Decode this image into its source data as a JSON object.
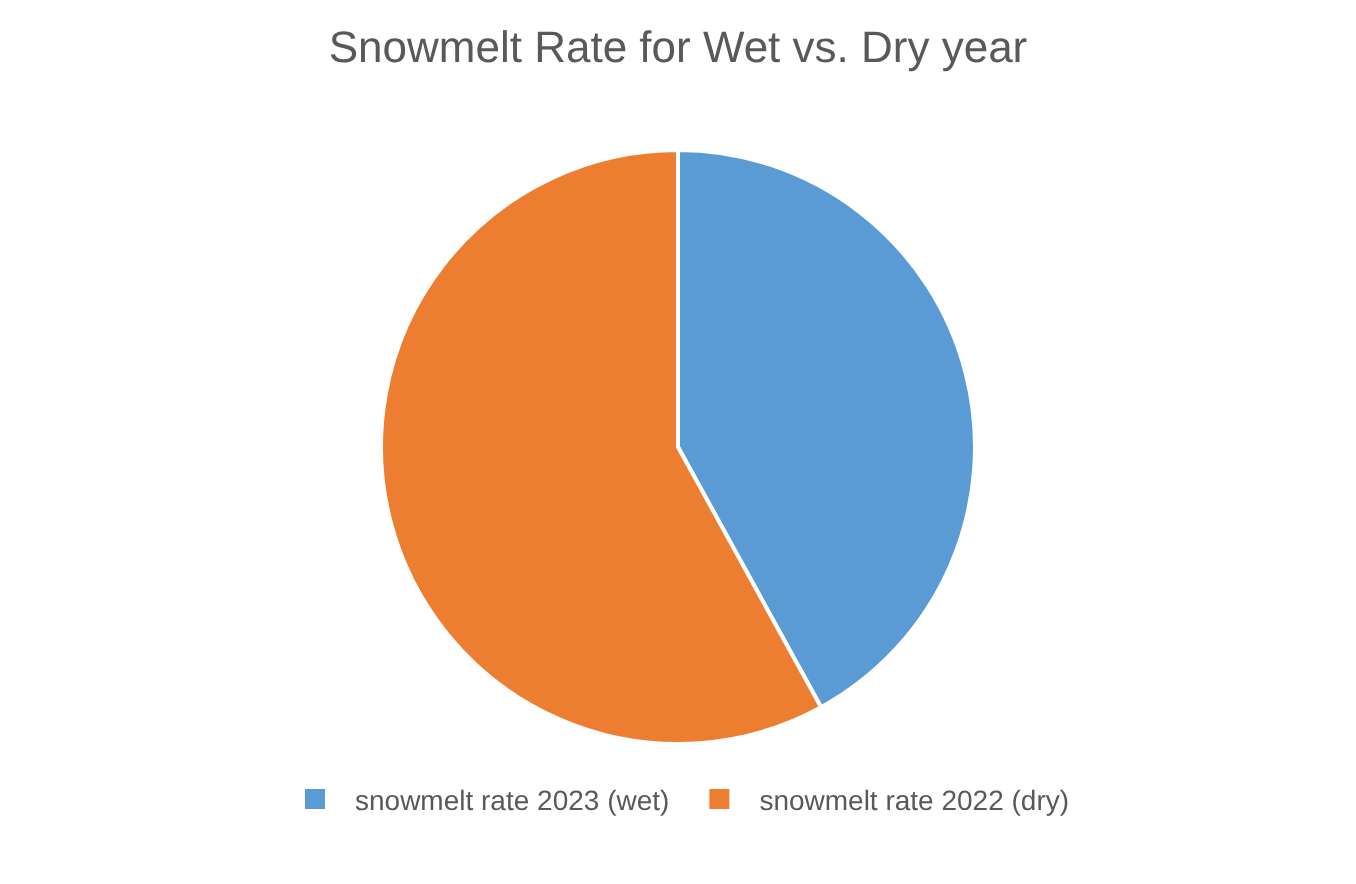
{
  "chart_data": {
    "type": "pie",
    "title": "Snowmelt Rate for Wet vs. Dry year",
    "categories": [
      "snowmelt rate 2023 (wet)",
      "snowmelt rate 2022 (dry)"
    ],
    "values": [
      42,
      58
    ],
    "colors": [
      "#5b9bd5",
      "#ed7d31"
    ],
    "legend": "bottom"
  }
}
